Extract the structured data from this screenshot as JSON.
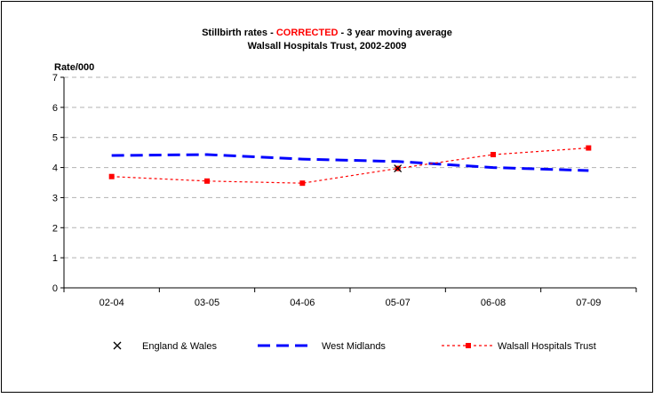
{
  "chart_data": {
    "type": "line",
    "title_parts": {
      "before": "Stillbirth rates - ",
      "highlight": "CORRECTED",
      "after": " - 3 year moving average"
    },
    "subtitle": "Walsall Hospitals Trust, 2002-2009",
    "ylabel": "Rate/000",
    "xlabel": "",
    "ylim": [
      0,
      7
    ],
    "yticks": [
      "0",
      "1",
      "2",
      "3",
      "4",
      "5",
      "6",
      "7"
    ],
    "categories": [
      "02-04",
      "03-05",
      "04-06",
      "05-07",
      "06-08",
      "07-09"
    ],
    "grid": true,
    "legend_position": "bottom",
    "series": [
      {
        "name": "England & Wales",
        "style": "marker-x",
        "color": "#000000",
        "values": [
          null,
          null,
          null,
          3.97,
          null,
          null
        ]
      },
      {
        "name": "West Midlands",
        "style": "dashed-thick",
        "color": "#0000ff",
        "values": [
          4.4,
          4.43,
          4.28,
          4.2,
          4.0,
          3.9
        ]
      },
      {
        "name": "Walsall Hospitals Trust",
        "style": "dotted-square",
        "color": "#ff0000",
        "values": [
          3.7,
          3.55,
          3.48,
          3.97,
          4.43,
          4.65
        ]
      }
    ],
    "colors": {
      "title_highlight": "#ff0000",
      "grid": "#b3b3b3",
      "axis": "#000000"
    }
  }
}
